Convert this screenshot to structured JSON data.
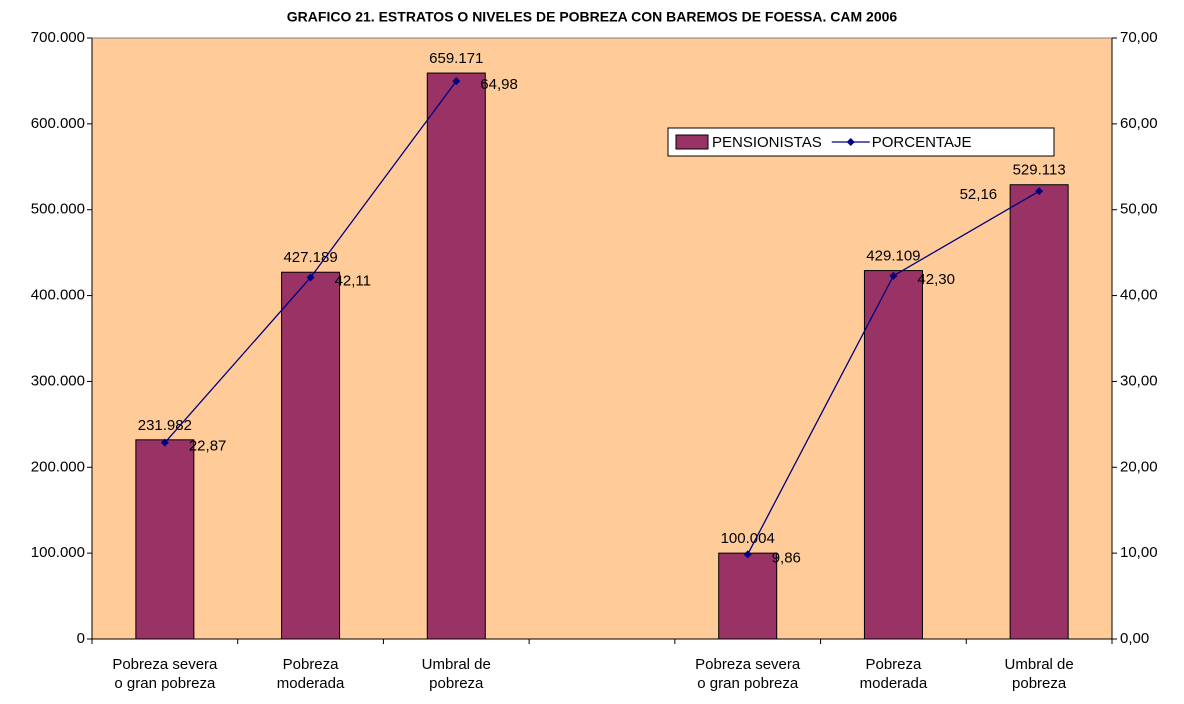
{
  "chart_data": {
    "type": "bar_line",
    "title": "GRAFICO 21. ESTRATOS O NIVELES DE POBREZA CON BAREMOS DE FOESSA. CAM 2006",
    "categories": [
      "Pobreza severa o gran pobreza",
      "Pobreza moderada",
      "Umbral de pobreza",
      null,
      "Pobreza severa o gran pobreza",
      "Pobreza moderada",
      "Umbral de pobreza"
    ],
    "series": [
      {
        "name": "PENSIONISTAS",
        "type": "bar",
        "color": "#993366",
        "values": [
          231982,
          427189,
          659171,
          null,
          100004,
          429109,
          529113
        ],
        "value_labels": [
          "231.982",
          "427.189",
          "659.171",
          null,
          "100.004",
          "429.109",
          "529.113"
        ]
      },
      {
        "name": "PORCENTAJE",
        "type": "line",
        "axis": "y2",
        "color": "#000080",
        "values": [
          22.87,
          42.11,
          64.98,
          null,
          9.86,
          42.3,
          52.16
        ],
        "value_labels": [
          "22,87",
          "42,11",
          "64,98",
          null,
          "9,86",
          "42,30",
          "52,16"
        ]
      }
    ],
    "ylim": [
      0,
      700000
    ],
    "yticks": [
      0,
      {
        "value": 100000,
        "label": "100.000"
      },
      {
        "value": 200000,
        "label": "200.000"
      },
      {
        "value": 300000,
        "label": "300.000"
      },
      {
        "value": 400000,
        "label": "400.000"
      },
      {
        "value": 500000,
        "label": "500.000"
      },
      {
        "value": 600000,
        "label": "600.000"
      },
      {
        "value": 700000,
        "label": "700.000"
      }
    ],
    "y2lim": [
      0,
      70
    ],
    "y2ticks": [
      {
        "value": 0,
        "label": "0,00"
      },
      {
        "value": 10,
        "label": "10,00"
      },
      {
        "value": 20,
        "label": "20,00"
      },
      {
        "value": 30,
        "label": "30,00"
      },
      {
        "value": 40,
        "label": "40,00"
      },
      {
        "value": 50,
        "label": "50,00"
      },
      {
        "value": 60,
        "label": "60,00"
      },
      {
        "value": 70,
        "label": "70,00"
      }
    ],
    "background": "#ffcc99",
    "legend": "upper right",
    "grid": false
  }
}
